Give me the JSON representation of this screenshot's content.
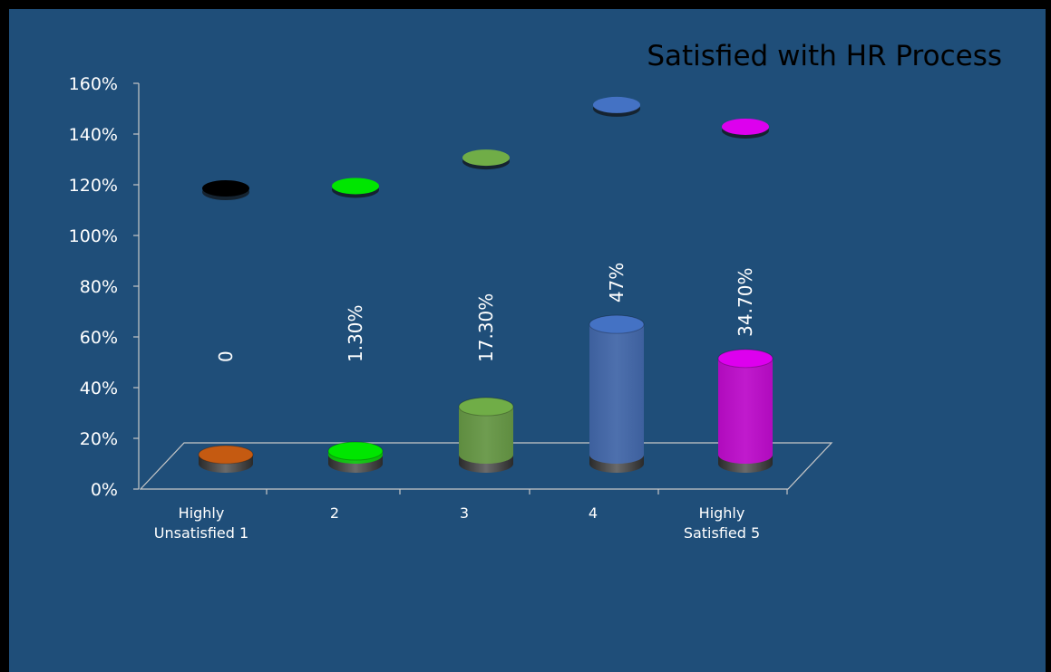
{
  "chart_data": {
    "type": "bar",
    "title": "Satisfied with HR Process",
    "xlabel": "",
    "ylabel": "",
    "ylim": [
      0,
      1.6
    ],
    "yticks": [
      "0%",
      "20%",
      "40%",
      "60%",
      "80%",
      "100%",
      "120%",
      "140%",
      "160%"
    ],
    "categories": [
      "Highly Unsatisfied 1",
      "2",
      "3",
      "4",
      "Highly Satisfied  5"
    ],
    "category_lines": [
      [
        "Highly",
        "Unsatisfied 1"
      ],
      [
        "2"
      ],
      [
        "3"
      ],
      [
        "4"
      ],
      [
        "Highly",
        "Satisfied  5"
      ]
    ],
    "values": [
      0,
      0.013,
      0.173,
      0.47,
      0.347
    ],
    "data_labels": [
      "0",
      "1.30%",
      "17.30%",
      "47%",
      "34.70%"
    ],
    "bar_colors": [
      "#c55a11",
      "#00e600",
      "#70ad47",
      "#4472c4",
      "#dd00ee"
    ],
    "cap_colors": [
      "#000000",
      "#00e600",
      "#70ad47",
      "#4472c4",
      "#dd00ee"
    ],
    "floor_color": "#c8c8c8",
    "text_color": "#ffffff",
    "background_color": "#1f4e79",
    "grid": false,
    "legend": "none"
  }
}
